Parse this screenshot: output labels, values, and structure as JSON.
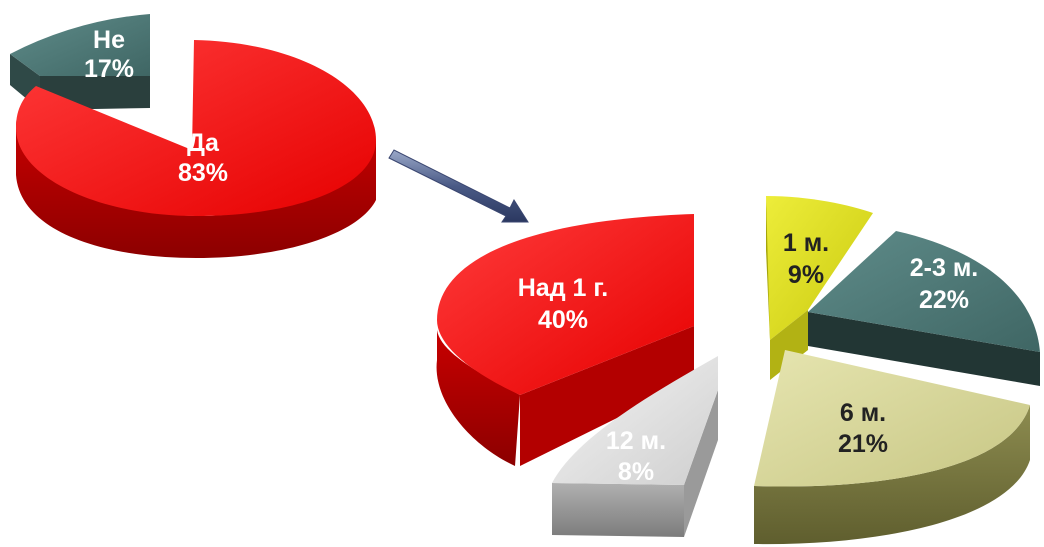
{
  "chart_data": [
    {
      "type": "pie",
      "categories": [
        "Да",
        "Не"
      ],
      "values": [
        83,
        17
      ],
      "value_labels": [
        "83%",
        "17%"
      ],
      "colors": {
        "Да": "#ff1a1a",
        "Не": "#4e7a78"
      },
      "exploded": [
        "Не"
      ],
      "style": "3d"
    },
    {
      "type": "pie",
      "categories": [
        "1 м.",
        "2-3 м.",
        "6 м.",
        "12 м.",
        "Над 1 г."
      ],
      "values": [
        9,
        22,
        21,
        8,
        40
      ],
      "value_labels": [
        "9%",
        "22%",
        "21%",
        "8%",
        "40%"
      ],
      "colors": {
        "1 м.": "#e3e31c",
        "2-3 м.": "#4e7a78",
        "6 м.": "#d8d79a",
        "12 м.": "#e0e0e0",
        "Над 1 г.": "#ff1a1a"
      },
      "exploded": [
        "1 м.",
        "2-3 м.",
        "6 м.",
        "12 м.",
        "Над 1 г."
      ],
      "style": "3d"
    }
  ]
}
